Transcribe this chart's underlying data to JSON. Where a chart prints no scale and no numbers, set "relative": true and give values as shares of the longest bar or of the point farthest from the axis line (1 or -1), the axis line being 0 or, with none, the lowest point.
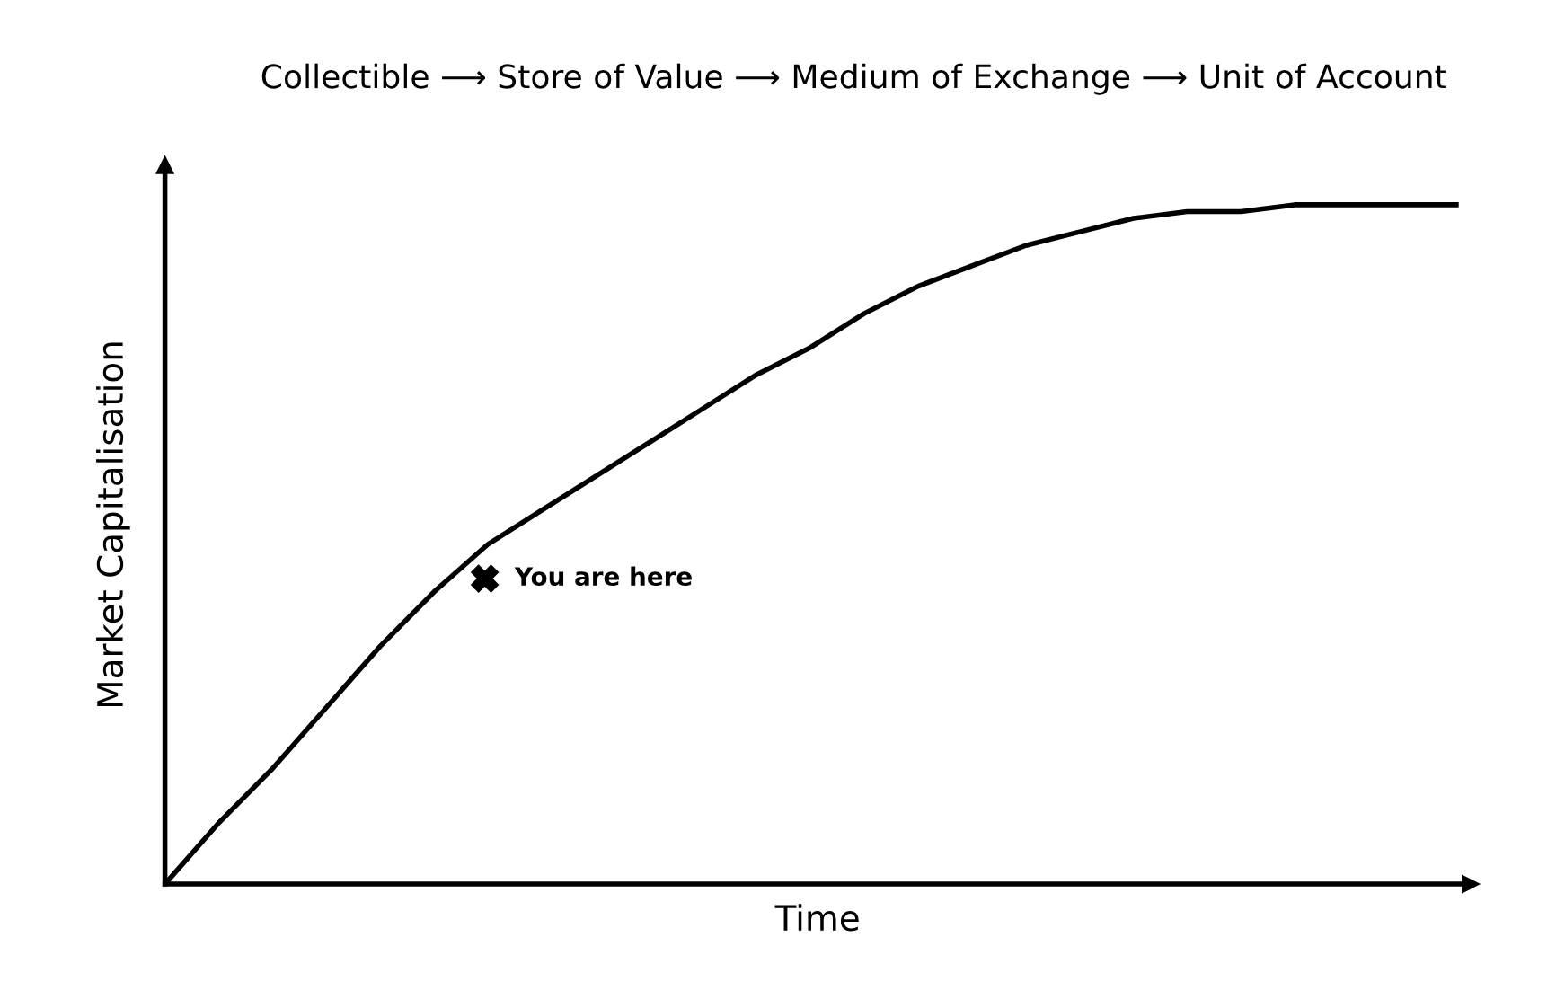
{
  "chart_data": {
    "type": "line",
    "title": "Collectible ⟶ Store of Value ⟶ Medium of Exchange ⟶ Unit of Account",
    "xlabel": "Time",
    "ylabel": "Market Capitalisation",
    "relative": true,
    "categories": [
      null,
      null,
      null,
      null,
      null,
      null,
      null,
      null,
      null,
      null,
      null,
      null,
      null,
      null,
      null,
      null,
      null,
      null,
      null,
      null,
      null,
      null,
      null,
      null,
      null
    ],
    "series": [
      {
        "color": "#000000",
        "values": [
          0,
          0.09,
          0.17,
          0.26,
          0.35,
          0.43,
          0.5,
          0.55,
          0.6,
          0.65,
          0.7,
          0.75,
          0.79,
          0.84,
          0.88,
          0.91,
          0.94,
          0.96,
          0.98,
          0.99,
          0.99,
          1.0,
          1.0,
          1.0,
          1.0
        ]
      }
    ],
    "annotations": [
      "You are here"
    ]
  }
}
